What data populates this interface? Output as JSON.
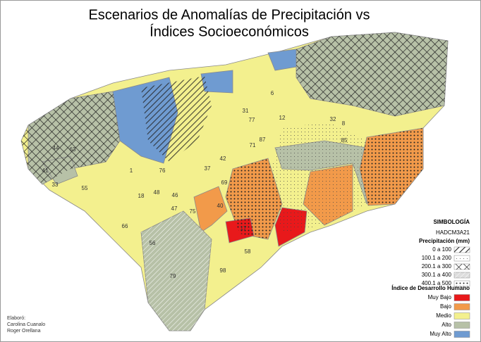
{
  "title": {
    "line1": "Escenarios de Anomalías de Precipitación vs",
    "line2": "Índices Socioeconómicos"
  },
  "legend": {
    "title": "SIMBOLOGÍA",
    "model": "HADCM3A21",
    "precip_title": "Precipitación (mm)",
    "precip_items": [
      "0 a 100",
      "100.1 a 200",
      "200.1 a 300",
      "300.1 a 400",
      "400.1 a 500"
    ],
    "idh_title": "Índice de Desarrollo Humano",
    "idh_items": [
      {
        "label": "Muy Bajo",
        "color": "#e8191b"
      },
      {
        "label": "Bajo",
        "color": "#f29a4a"
      },
      {
        "label": "Medio",
        "color": "#f3f08e"
      },
      {
        "label": "Alto",
        "color": "#b7c1a7"
      },
      {
        "label": "Muy Alto",
        "color": "#6f9bd1"
      }
    ]
  },
  "credits": {
    "heading": "Elaboró:",
    "authors": [
      "Carolina Cuanalo",
      "Roger Orellana"
    ]
  },
  "municipality_labels": [
    6,
    12,
    32,
    8,
    85,
    77,
    31,
    87,
    71,
    42,
    44,
    63,
    41,
    33,
    55,
    1,
    76,
    48,
    18,
    46,
    47,
    75,
    66,
    56,
    58,
    98,
    79,
    69,
    37,
    40,
    17
  ]
}
